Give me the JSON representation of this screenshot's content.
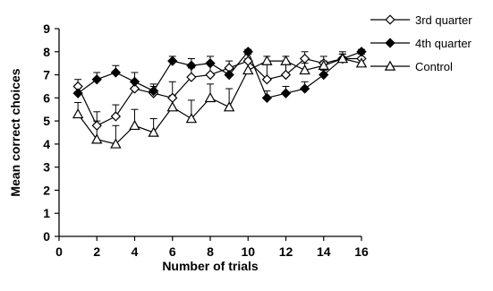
{
  "chart_data": {
    "type": "line",
    "title": "",
    "xlabel": "Number of trials",
    "ylabel": "Mean correct choices",
    "xlim": [
      0,
      16
    ],
    "ylim": [
      0,
      9
    ],
    "xticks": [
      0,
      2,
      4,
      6,
      8,
      10,
      12,
      14,
      16
    ],
    "yticks": [
      0,
      1,
      2,
      3,
      4,
      5,
      6,
      7,
      8,
      9
    ],
    "grid": false,
    "legend_position": "top-right",
    "x": [
      1,
      2,
      3,
      4,
      5,
      6,
      7,
      8,
      9,
      10,
      11,
      12,
      13,
      14,
      15,
      16
    ],
    "series": [
      {
        "name": "3rd quarter",
        "marker": "diamond-open",
        "values": [
          6.5,
          4.8,
          5.2,
          6.4,
          6.2,
          6.0,
          6.9,
          7.0,
          7.3,
          7.6,
          6.8,
          7.0,
          7.7,
          7.5,
          7.7,
          7.7
        ],
        "error": [
          0.3,
          0.6,
          0.5,
          0.3,
          0.3,
          0.7,
          0.4,
          0.5,
          0.3,
          0.3,
          0.7,
          0.6,
          0.3,
          0.3,
          0.3,
          0.2
        ]
      },
      {
        "name": "4th quarter",
        "marker": "diamond-filled",
        "values": [
          6.2,
          6.8,
          7.1,
          6.7,
          6.3,
          7.6,
          7.4,
          7.5,
          7.0,
          8.0,
          6.0,
          6.2,
          6.4,
          7.0,
          7.7,
          8.0
        ],
        "error": [
          0.3,
          0.3,
          0.3,
          0.4,
          0.3,
          0.2,
          0.3,
          0.3,
          0.3,
          0.1,
          0.3,
          0.3,
          0.3,
          0.2,
          0.2,
          0.1
        ]
      },
      {
        "name": "Control",
        "marker": "triangle-open",
        "values": [
          5.3,
          4.2,
          4.0,
          4.8,
          4.5,
          5.6,
          5.1,
          6.0,
          5.6,
          7.2,
          7.6,
          7.6,
          7.2,
          7.4,
          7.7,
          7.5
        ],
        "error": [
          0.5,
          0.8,
          0.8,
          0.7,
          0.6,
          0.5,
          0.8,
          0.6,
          0.8,
          0.5,
          0.2,
          0.2,
          0.3,
          0.2,
          0.2,
          0.2
        ]
      }
    ]
  }
}
